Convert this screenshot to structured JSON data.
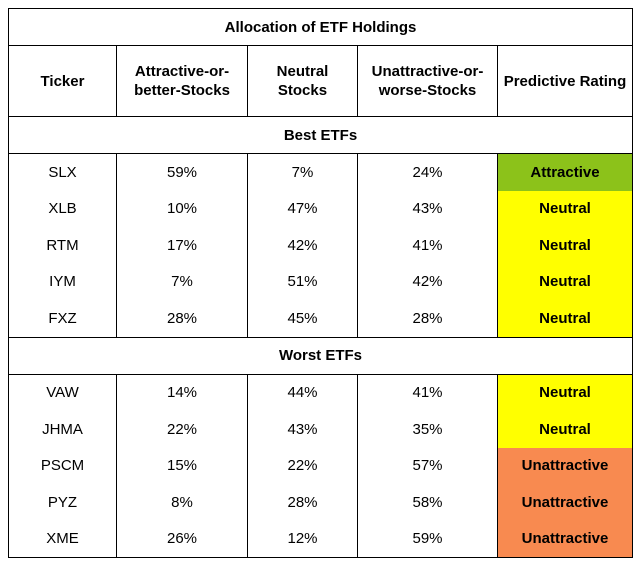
{
  "title": "Allocation of ETF Holdings",
  "columns": [
    "Ticker",
    "Attractive-or-better-Stocks",
    "Neutral Stocks",
    "Unattractive-or-worse-Stocks",
    "Predictive Rating"
  ],
  "column_lines": [
    [
      "Ticker"
    ],
    [
      "Attractive-or-",
      "better-Stocks"
    ],
    [
      "Neutral",
      "Stocks"
    ],
    [
      "Unattractive-or-",
      "worse-Stocks"
    ],
    [
      "Predictive Rating"
    ]
  ],
  "rating_colors": {
    "Attractive": "#8cc21a",
    "Neutral": "#ffff00",
    "Unattractive": "#f88a50"
  },
  "sections": [
    {
      "label": "Best ETFs",
      "rows": [
        {
          "ticker": "SLX",
          "attractive": "59%",
          "neutral": "7%",
          "unattractive": "24%",
          "rating": "Attractive"
        },
        {
          "ticker": "XLB",
          "attractive": "10%",
          "neutral": "47%",
          "unattractive": "43%",
          "rating": "Neutral"
        },
        {
          "ticker": "RTM",
          "attractive": "17%",
          "neutral": "42%",
          "unattractive": "41%",
          "rating": "Neutral"
        },
        {
          "ticker": "IYM",
          "attractive": "7%",
          "neutral": "51%",
          "unattractive": "42%",
          "rating": "Neutral"
        },
        {
          "ticker": "FXZ",
          "attractive": "28%",
          "neutral": "45%",
          "unattractive": "28%",
          "rating": "Neutral"
        }
      ]
    },
    {
      "label": "Worst ETFs",
      "rows": [
        {
          "ticker": "VAW",
          "attractive": "14%",
          "neutral": "44%",
          "unattractive": "41%",
          "rating": "Neutral"
        },
        {
          "ticker": "JHMA",
          "attractive": "22%",
          "neutral": "43%",
          "unattractive": "35%",
          "rating": "Neutral"
        },
        {
          "ticker": "PSCM",
          "attractive": "15%",
          "neutral": "22%",
          "unattractive": "57%",
          "rating": "Unattractive"
        },
        {
          "ticker": "PYZ",
          "attractive": "8%",
          "neutral": "28%",
          "unattractive": "58%",
          "rating": "Unattractive"
        },
        {
          "ticker": "XME",
          "attractive": "26%",
          "neutral": "12%",
          "unattractive": "59%",
          "rating": "Unattractive"
        }
      ]
    }
  ]
}
